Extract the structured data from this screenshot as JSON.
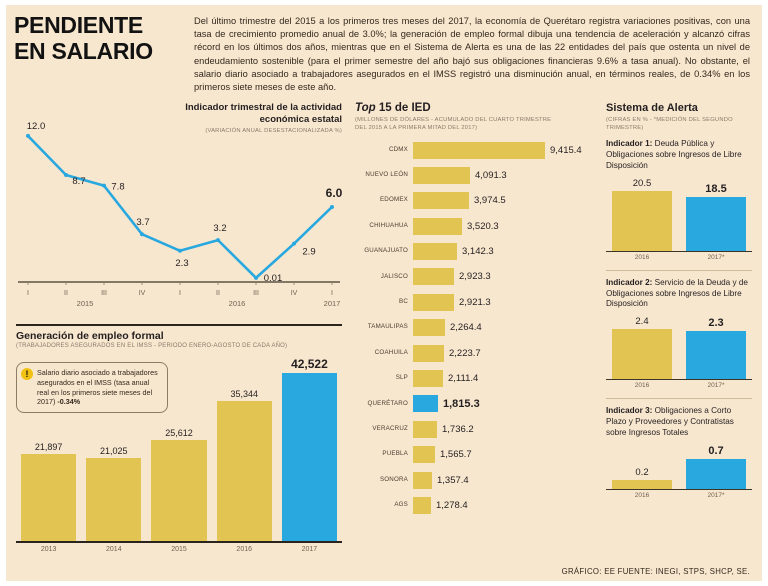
{
  "page": {
    "title_line1": "PENDIENTE",
    "title_line2": "EN SALARIO",
    "intro": "Del último trimestre del 2015 a los primeros tres meses del 2017, la economía de Querétaro registra variaciones positivas, con una tasa de crecimiento promedio anual de 3.0%; la generación de empleo formal dibuja una tendencia de aceleración y alcanzó cifras récord en los últimos dos años, mientras que en el Sistema de Alerta es una de las 22 entidades del país que ostenta un nivel de endeudamiento sostenible (para el primer semestre del año bajó sus obligaciones financieras 9.6% a tasa anual). No obstante, el salario diario asociado a trabajadores asegurados en el IMSS registró una disminución anual, en términos reales, de 0.34% en los primeros siete meses de este año.",
    "credit": "GRÁFICO: EE  FUENTE: INEGI, STPS, SHCP, SE."
  },
  "colors": {
    "background": "#f8e7cf",
    "bar_yellow": "#e2c452",
    "accent_blue": "#29a8df",
    "text_dark": "#231f20",
    "text_gray": "#8a7a68"
  },
  "chart_data": [
    {
      "id": "actividad-economica",
      "type": "line",
      "title": "Indicador trimestral de la actividad económica estatal",
      "subtitle": "(VARIACIÓN ANUAL DESESTACIONALIZADA %)",
      "x": [
        "I",
        "II",
        "III",
        "IV",
        "I",
        "II",
        "III",
        "IV",
        "I"
      ],
      "year_groups": [
        {
          "label": "2015",
          "span": [
            0,
            3
          ]
        },
        {
          "label": "2016",
          "span": [
            4,
            7
          ]
        },
        {
          "label": "2017",
          "span": [
            8,
            8
          ]
        }
      ],
      "values": [
        12.0,
        8.7,
        7.8,
        3.7,
        2.3,
        3.2,
        0.01,
        2.9,
        6.0
      ],
      "labels": [
        "12.0",
        "8.7",
        "7.8",
        "3.7",
        "2.3",
        "3.2",
        "0.01",
        "2.9",
        "6.0"
      ],
      "highlight_index": 8,
      "line_color": "#29a8df",
      "ylim": [
        0,
        12.5
      ],
      "grid": false
    },
    {
      "id": "empleo-formal",
      "type": "bar",
      "title": "Generación de empleo formal",
      "subtitle": "(TRABAJADORES ASEGURADOS EN EL IMSS - PERIODO ENERO-AGOSTO DE CADA AÑO)",
      "categories": [
        "2013",
        "2014",
        "2015",
        "2016",
        "2017"
      ],
      "values": [
        21897,
        21025,
        25612,
        35344,
        42522
      ],
      "labels": [
        "21,897",
        "21,025",
        "25,612",
        "35,344",
        "42,522"
      ],
      "highlight_index": 4,
      "bar_color": "#e2c452",
      "highlight_color": "#29a8df",
      "note": {
        "text_before": "Salario diario asociado a trabajadores asegurados en el IMSS (tasa anual real en los primeros siete meses del 2017) ",
        "value": "-0.34%",
        "icon": "warning-icon",
        "icon_glyph": "!"
      }
    },
    {
      "id": "top15-ied",
      "type": "bar-horizontal",
      "title_italic": "Top",
      "title_rest": " 15 de IED",
      "subtitle": "(MILLONES DE DÓLARES - ACUMULADO DEL CUARTO TRIMESTRE DEL 2015 A LA PRIMERA MITAD DEL 2017)",
      "categories": [
        "CDMX",
        "NUEVO LEÓN",
        "EDOMEX",
        "CHIHUAHUA",
        "GUANAJUATO",
        "JALISCO",
        "BC",
        "TAMAULIPAS",
        "COAHUILA",
        "SLP",
        "QUERÉTARO",
        "VERACRUZ",
        "PUEBLA",
        "SONORA",
        "AGS"
      ],
      "values": [
        9415.4,
        4091.3,
        3974.5,
        3520.3,
        3142.3,
        2923.3,
        2921.3,
        2264.4,
        2223.7,
        2111.4,
        1815.3,
        1736.2,
        1565.7,
        1357.4,
        1278.4
      ],
      "labels": [
        "9,415.4",
        "4,091.3",
        "3,974.5",
        "3,520.3",
        "3,142.3",
        "2,923.3",
        "2,921.3",
        "2,264.4",
        "2,223.7",
        "2,111.4",
        "1,815.3",
        "1,736.2",
        "1,565.7",
        "1,357.4",
        "1,278.4"
      ],
      "highlight_index": 10,
      "bar_color": "#e2c452",
      "highlight_color": "#29a8df"
    },
    {
      "id": "sistema-alerta",
      "type": "bar-groups",
      "title": "Sistema de Alerta",
      "subtitle": "(CIFRAS EN % - *MEDICIÓN DEL SEGUNDO TRIMESTRE)",
      "categories": [
        "2016",
        "2017*"
      ],
      "bar_color": "#e2c452",
      "highlight_color": "#29a8df",
      "indicators": [
        {
          "name_bold": "Indicador 1:",
          "name_rest": " Deuda Pública y Obligaciones sobre Ingresos de Libre Disposición",
          "values": [
            20.5,
            18.5
          ],
          "labels": [
            "20.5",
            "18.5"
          ]
        },
        {
          "name_bold": "Indicador 2:",
          "name_rest": " Servicio de la Deuda y de Obligaciones sobre Ingresos de Libre Disposición",
          "values": [
            2.4,
            2.3
          ],
          "labels": [
            "2.4",
            "2.3"
          ]
        },
        {
          "name_bold": "Indicador 3:",
          "name_rest": " Obligaciones a Corto Plazo y Proveedores y Contratistas sobre Ingresos Totales",
          "values": [
            0.2,
            0.7
          ],
          "labels": [
            "0.2",
            "0.7"
          ]
        }
      ]
    }
  ]
}
